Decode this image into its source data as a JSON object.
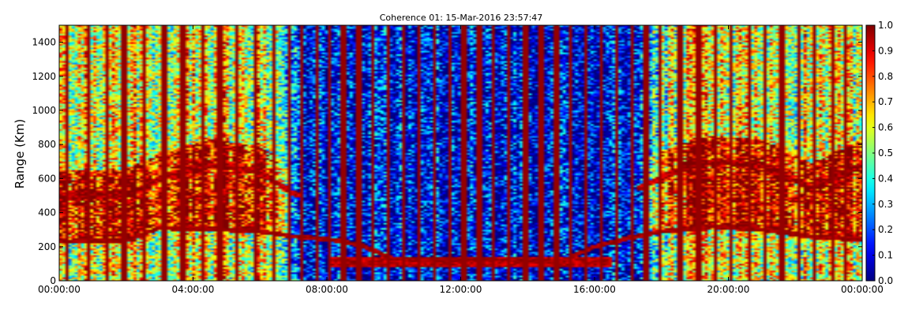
{
  "chart_data": {
    "type": "heatmap",
    "title": "Coherence 01: 15-Mar-2016 23:57:47",
    "ylabel": "Range (Km)",
    "xlabel": "",
    "x_tick_labels": [
      "00:00:00",
      "04:00:00",
      "08:00:00",
      "12:00:00",
      "16:00:00",
      "20:00:00",
      "00:00:00"
    ],
    "x_range_hours": [
      0,
      24
    ],
    "y_ticks": [
      0,
      200,
      400,
      600,
      800,
      1000,
      1200,
      1400
    ],
    "ylim": [
      0,
      1500
    ],
    "colorbar": {
      "ticks": [
        0.0,
        0.1,
        0.2,
        0.3,
        0.4,
        0.5,
        0.6,
        0.7,
        0.8,
        0.9,
        1.0
      ],
      "tick_labels": [
        "0.0",
        "0.1",
        "0.2",
        "0.3",
        "0.4",
        "0.5",
        "0.6",
        "0.7",
        "0.8",
        "0.9",
        "1.0"
      ],
      "range": [
        0,
        1
      ],
      "colormap": "jet"
    },
    "saturated_columns_hours": [
      0.25,
      0.85,
      1.4,
      1.95,
      2.55,
      3.15,
      3.7,
      4.3,
      4.8,
      5.3,
      5.85,
      6.4,
      6.85,
      7.25,
      7.7,
      8.1,
      8.5,
      8.95,
      9.4,
      9.85,
      10.3,
      10.75,
      11.2,
      11.65,
      12.1,
      12.55,
      13.0,
      13.45,
      13.95,
      14.4,
      14.85,
      15.3,
      15.75,
      16.2,
      16.65,
      17.1,
      17.55,
      17.95,
      18.55,
      19.1,
      19.6,
      20.1,
      20.6,
      21.1,
      21.6,
      22.1,
      22.6,
      23.1,
      23.5
    ],
    "echo_traces": [
      {
        "name_hint": "lower layer",
        "points": [
          [
            0,
            230
          ],
          [
            2,
            235
          ],
          [
            3,
            310
          ],
          [
            4.5,
            305
          ],
          [
            6,
            290
          ],
          [
            7,
            260
          ],
          [
            8,
            245
          ],
          [
            9,
            210
          ],
          [
            10,
            130
          ],
          [
            15,
            115
          ],
          [
            16,
            200
          ],
          [
            17,
            250
          ],
          [
            18,
            290
          ],
          [
            19.5,
            320
          ],
          [
            21,
            300
          ],
          [
            22.5,
            260
          ],
          [
            24,
            240
          ]
        ]
      },
      {
        "name_hint": "upper layer",
        "points": [
          [
            0,
            500
          ],
          [
            2,
            500
          ],
          [
            3,
            600
          ],
          [
            4.5,
            680
          ],
          [
            6,
            640
          ],
          [
            7,
            510
          ],
          [
            7.8,
            480
          ],
          [
            16.5,
            480
          ],
          [
            17.5,
            560
          ],
          [
            18.5,
            650
          ],
          [
            19.5,
            700
          ],
          [
            21,
            680
          ],
          [
            22.5,
            540
          ],
          [
            24,
            680
          ]
        ]
      }
    ]
  }
}
